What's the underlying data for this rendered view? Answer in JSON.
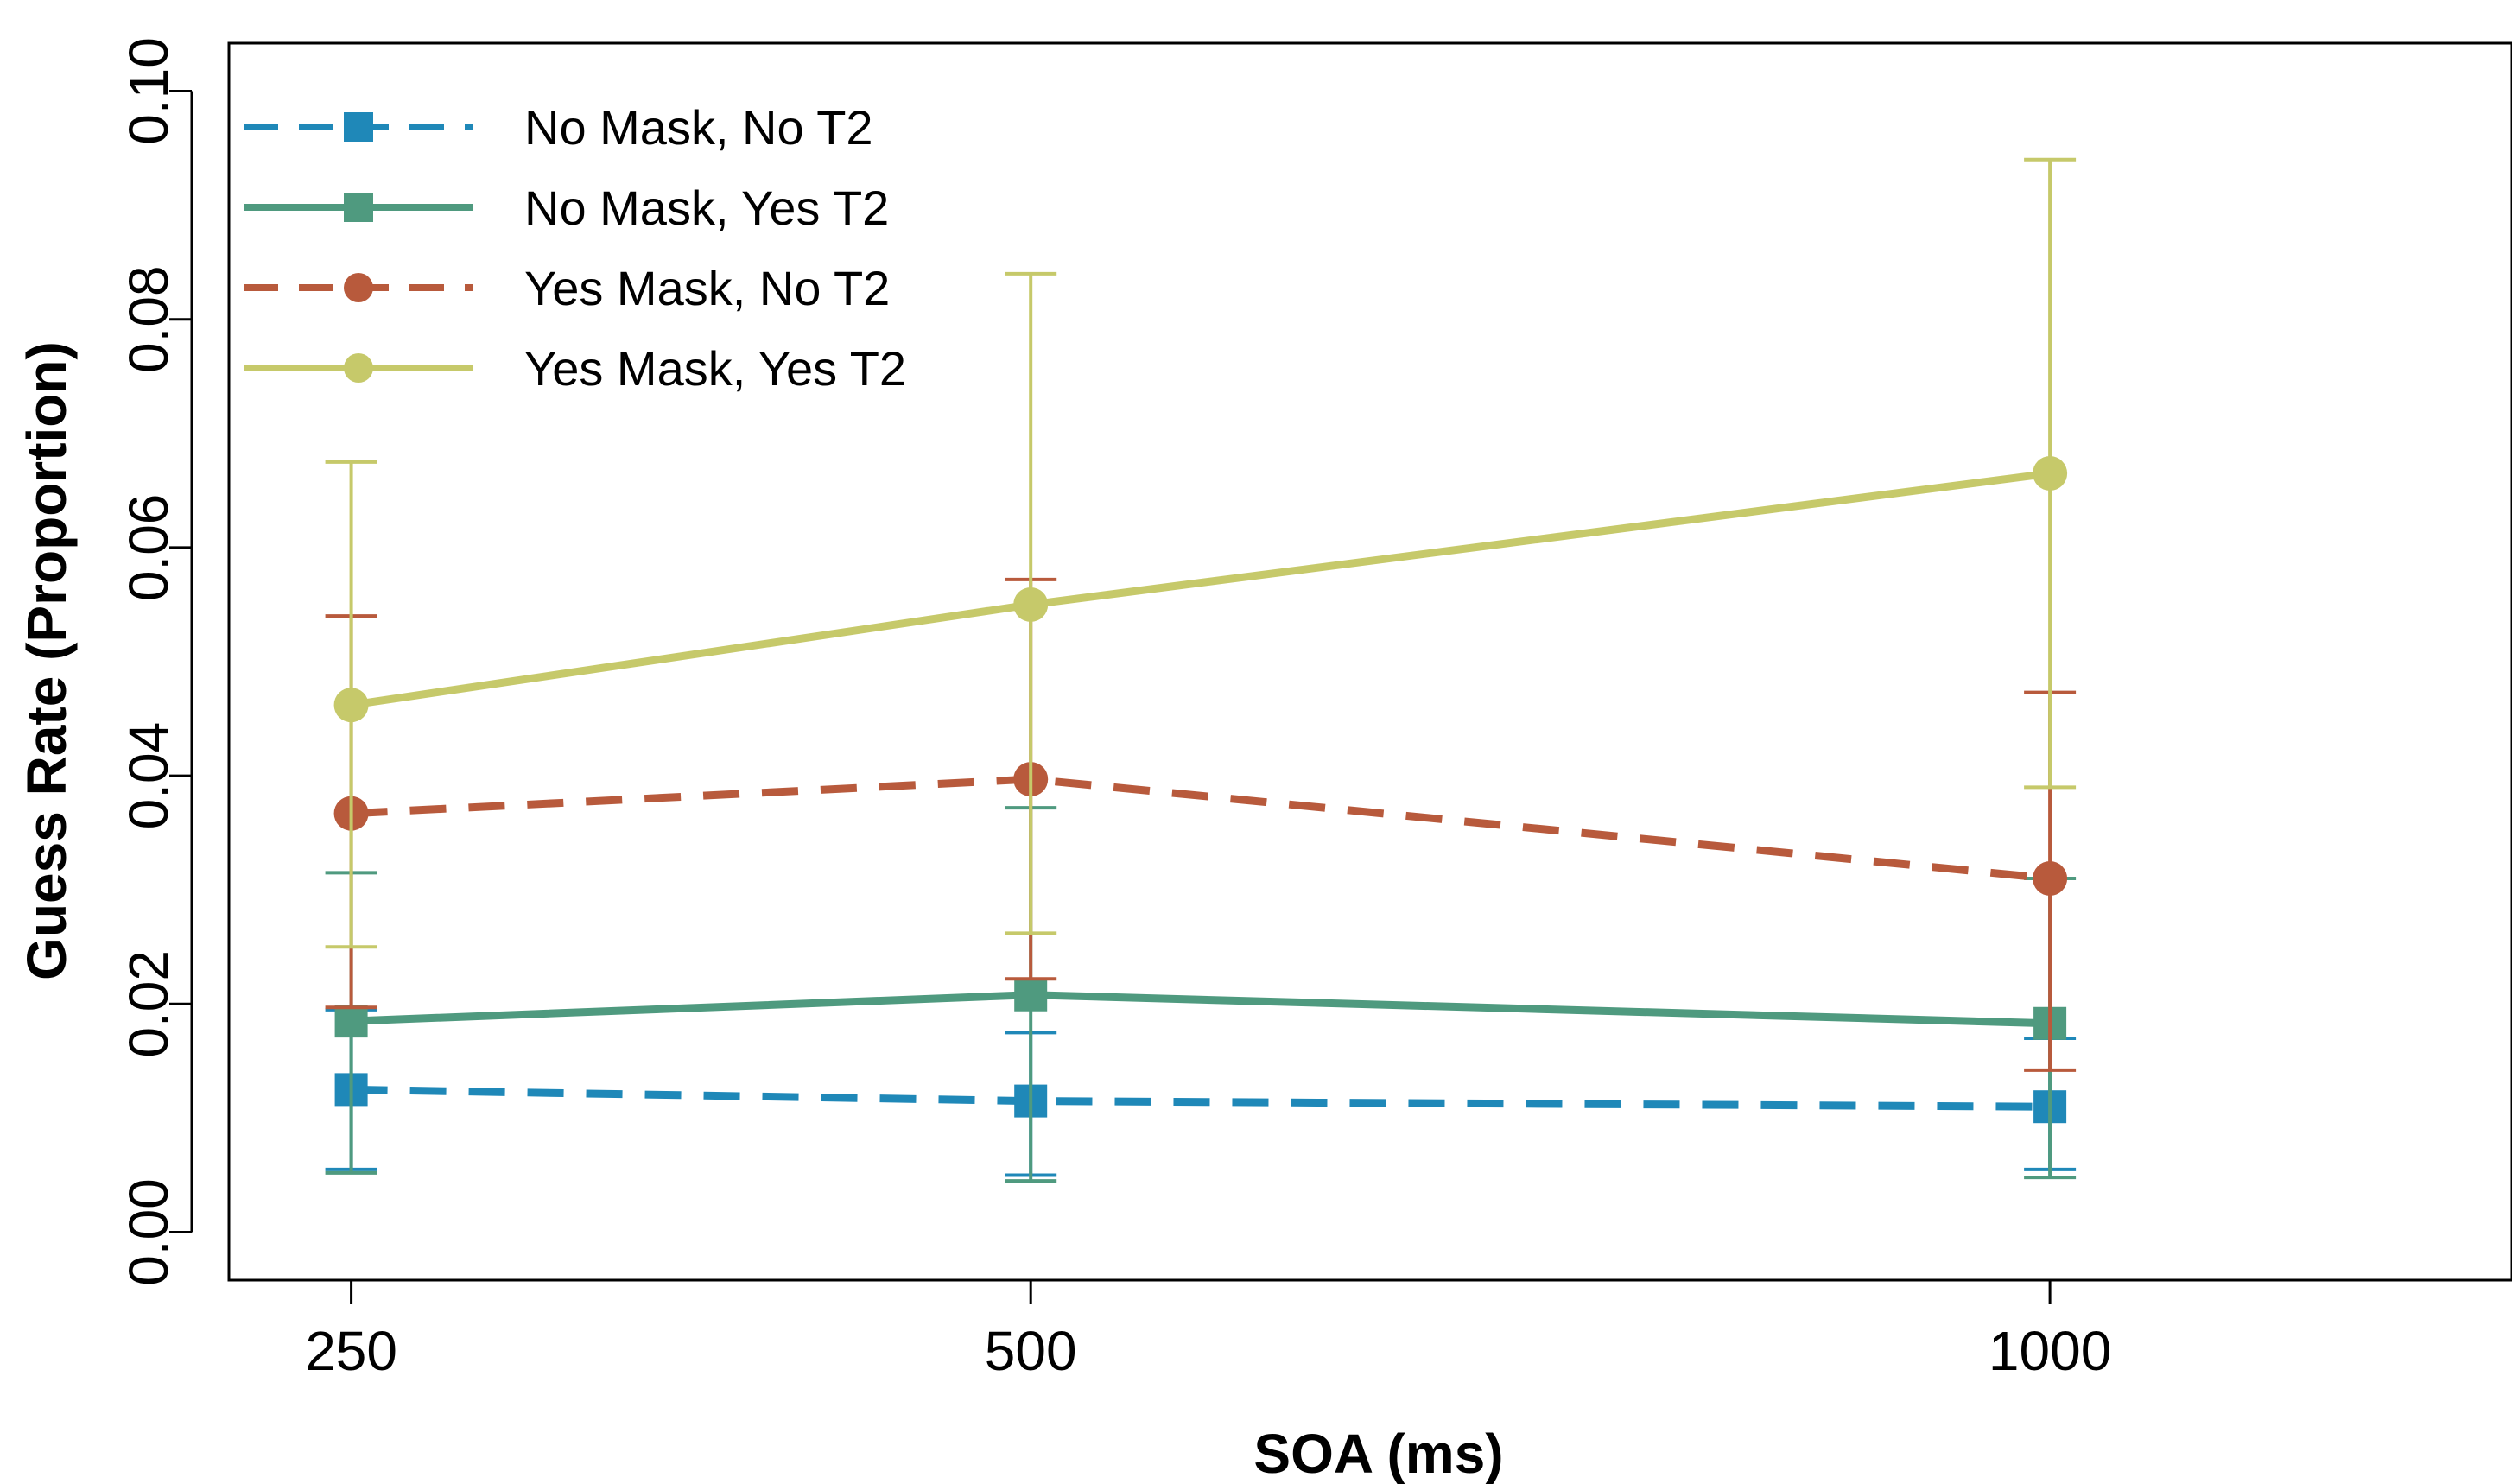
{
  "chart_data": {
    "type": "line",
    "title": "",
    "xlabel": "SOA (ms)",
    "ylabel": "Guess Rate (Proportion)",
    "categories": [
      "250",
      "500",
      "1000"
    ],
    "xlim": [
      0.82,
      4.18
    ],
    "ylim": [
      -0.0042,
      0.1042
    ],
    "yticks": [
      "0.00",
      "0.02",
      "0.04",
      "0.06",
      "0.08",
      "0.10"
    ],
    "ytick_values": [
      0,
      0.02,
      0.04,
      0.06,
      0.08,
      0.1
    ],
    "legend_position": "top-left",
    "grid": false,
    "series": [
      {
        "name": "No Mask, No T2",
        "color": "#1f88b8",
        "dashed": true,
        "marker": "square",
        "values": [
          0.0125,
          0.0115,
          0.011
        ],
        "error_lower": [
          0.0055,
          0.005,
          0.0055
        ],
        "error_upper": [
          0.0195,
          0.0175,
          0.017
        ]
      },
      {
        "name": "No Mask, Yes T2",
        "color": "#4f9a7f",
        "dashed": false,
        "marker": "square",
        "values": [
          0.0185,
          0.0208,
          0.0183
        ],
        "error_lower": [
          0.0052,
          0.0045,
          0.0048
        ],
        "error_upper": [
          0.0315,
          0.0372,
          0.031
        ]
      },
      {
        "name": "Yes Mask, No T2",
        "color": "#b85a3c",
        "dashed": true,
        "marker": "circle",
        "values": [
          0.0367,
          0.0397,
          0.031
        ],
        "error_lower": [
          0.0197,
          0.0222,
          0.0142
        ],
        "error_upper": [
          0.054,
          0.0572,
          0.0473
        ]
      },
      {
        "name": "Yes Mask, Yes T2",
        "color": "#c6c96a",
        "dashed": false,
        "marker": "circle",
        "values": [
          0.0462,
          0.055,
          0.0665
        ],
        "error_lower": [
          0.025,
          0.0262,
          0.039
        ],
        "error_upper": [
          0.0675,
          0.084,
          0.094
        ]
      }
    ]
  }
}
